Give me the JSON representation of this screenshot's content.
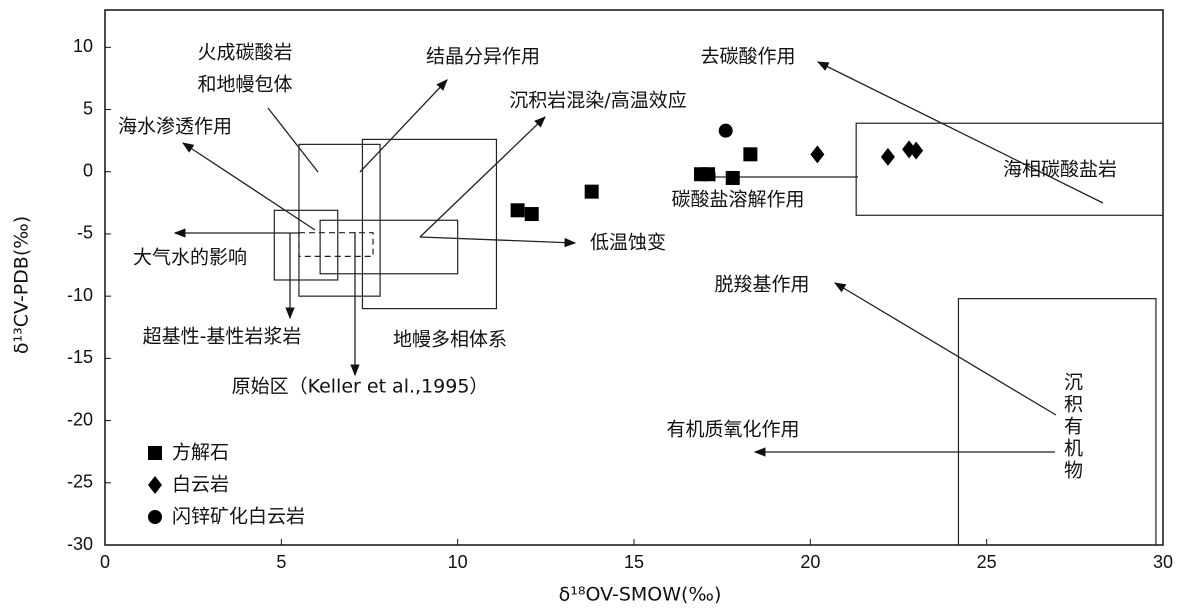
{
  "chart_data": {
    "type": "scatter",
    "xlabel": "δ¹⁸OV-SMOW(‰)",
    "ylabel": "δ¹³CV-PDB(‰)",
    "xlim": [
      0,
      30
    ],
    "xticks": [
      0,
      5,
      10,
      15,
      20,
      25,
      30
    ],
    "ylim": [
      -30,
      13
    ],
    "yticks": [
      -30,
      -25,
      -20,
      -15,
      -10,
      -5,
      0,
      5,
      10
    ],
    "series": [
      {
        "name": "方解石",
        "marker": "square",
        "color": "#000000",
        "x": [
          11.7,
          12.1,
          13.8,
          16.9,
          17.1,
          17.8,
          18.3
        ],
        "values": [
          -3.1,
          -3.4,
          -1.6,
          -0.2,
          -0.2,
          -0.5,
          1.4
        ]
      },
      {
        "name": "白云岩",
        "marker": "diamond",
        "color": "#000000",
        "x": [
          20.2,
          22.2,
          22.8,
          23.0
        ],
        "values": [
          1.4,
          1.2,
          1.8,
          1.7
        ]
      },
      {
        "name": "闪锌矿化白云岩",
        "marker": "circle",
        "color": "#000000",
        "x": [
          17.6
        ],
        "values": [
          3.3
        ]
      }
    ],
    "regions": [
      {
        "x": [
          5.5,
          7.8
        ],
        "y": [
          -10,
          2.2
        ],
        "dashed": false
      },
      {
        "x": [
          7.3,
          11.1
        ],
        "y": [
          -11,
          2.6
        ],
        "dashed": false
      },
      {
        "x": [
          4.8,
          6.6
        ],
        "y": [
          -8.7,
          -3.1
        ],
        "dashed": false
      },
      {
        "x": [
          6.1,
          10.0
        ],
        "y": [
          -8.2,
          -3.9
        ],
        "dashed": false
      },
      {
        "x": [
          5.5,
          7.6
        ],
        "y": [
          -6.8,
          -4.9
        ],
        "dashed": true
      },
      {
        "x": [
          21.3,
          30
        ],
        "y": [
          -3.5,
          3.9
        ],
        "dashed": false
      },
      {
        "x": [
          24.2,
          29.8
        ],
        "y": [
          -30,
          -10.2
        ],
        "dashed": false
      }
    ],
    "annotations": [
      "火成碳酸岩",
      "和地幔包体",
      "结晶分异作用",
      "沉积岩混染/高温效应",
      "海水渗透作用",
      "大气水的影响",
      "低温蚀变",
      "超基性-基性岩浆岩",
      "地幔多相体系",
      "原始区（Keller et al.,1995）",
      "去碳酸作用",
      "海相碳酸盐岩",
      "碳酸盐溶解作用",
      "脱羧基作用",
      "有机质氧化作用",
      "沉积有机物"
    ]
  }
}
